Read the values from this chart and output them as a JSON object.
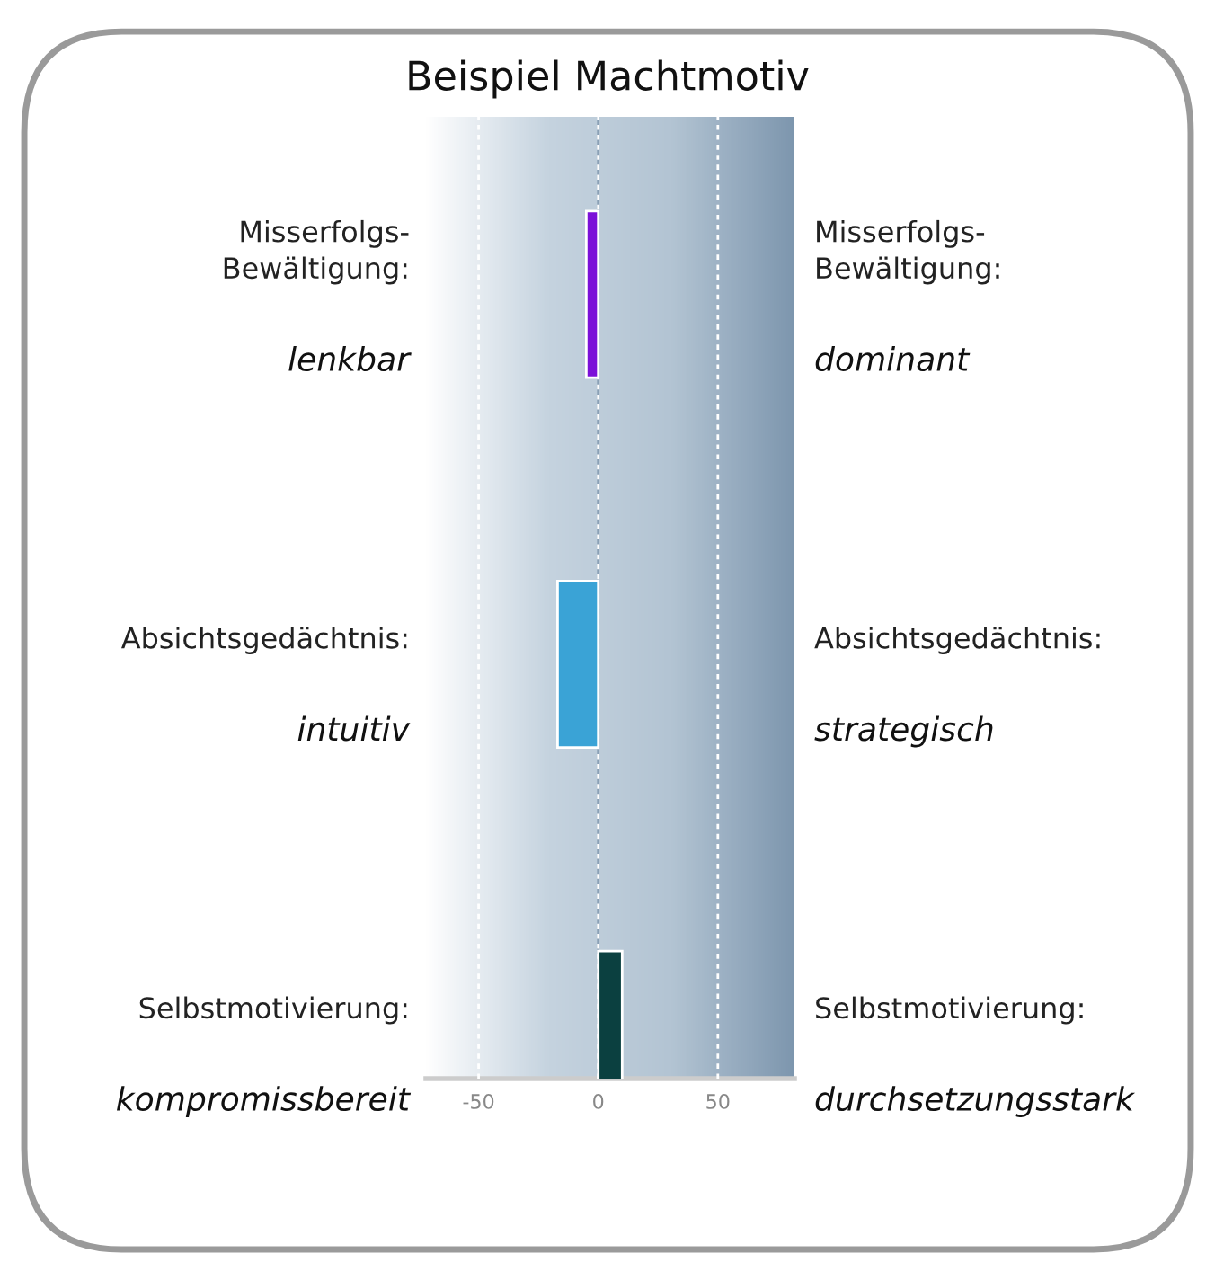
{
  "chart_data": {
    "type": "bar",
    "orientation": "horizontal",
    "title": "Beispiel Machtmotiv",
    "categories": [
      "Misserfolgs-\nBewältigung:\nlenkbar",
      "Absichtsgedächtnis:\nintuitiv",
      "Selbstmotivierung:\nkompromissbereit"
    ],
    "values": [
      -5,
      -17,
      10
    ],
    "colors": [
      "#7b10d8",
      "#3aa3d6",
      "#0b4040"
    ],
    "annotations": [
      "Misserfolgs-\nBewältigung:\ndominant",
      "Absichtsgedächtnis:\nstrategisch",
      "Selbstmotivierung:\ndurchsetzungsstark"
    ],
    "xlim": [
      -72,
      82
    ],
    "xticks": [
      -50,
      0,
      50
    ],
    "grid": "x",
    "ref_lines": [
      {
        "axis": "x",
        "value": 0,
        "color": "#8aa0b5"
      }
    ]
  }
}
